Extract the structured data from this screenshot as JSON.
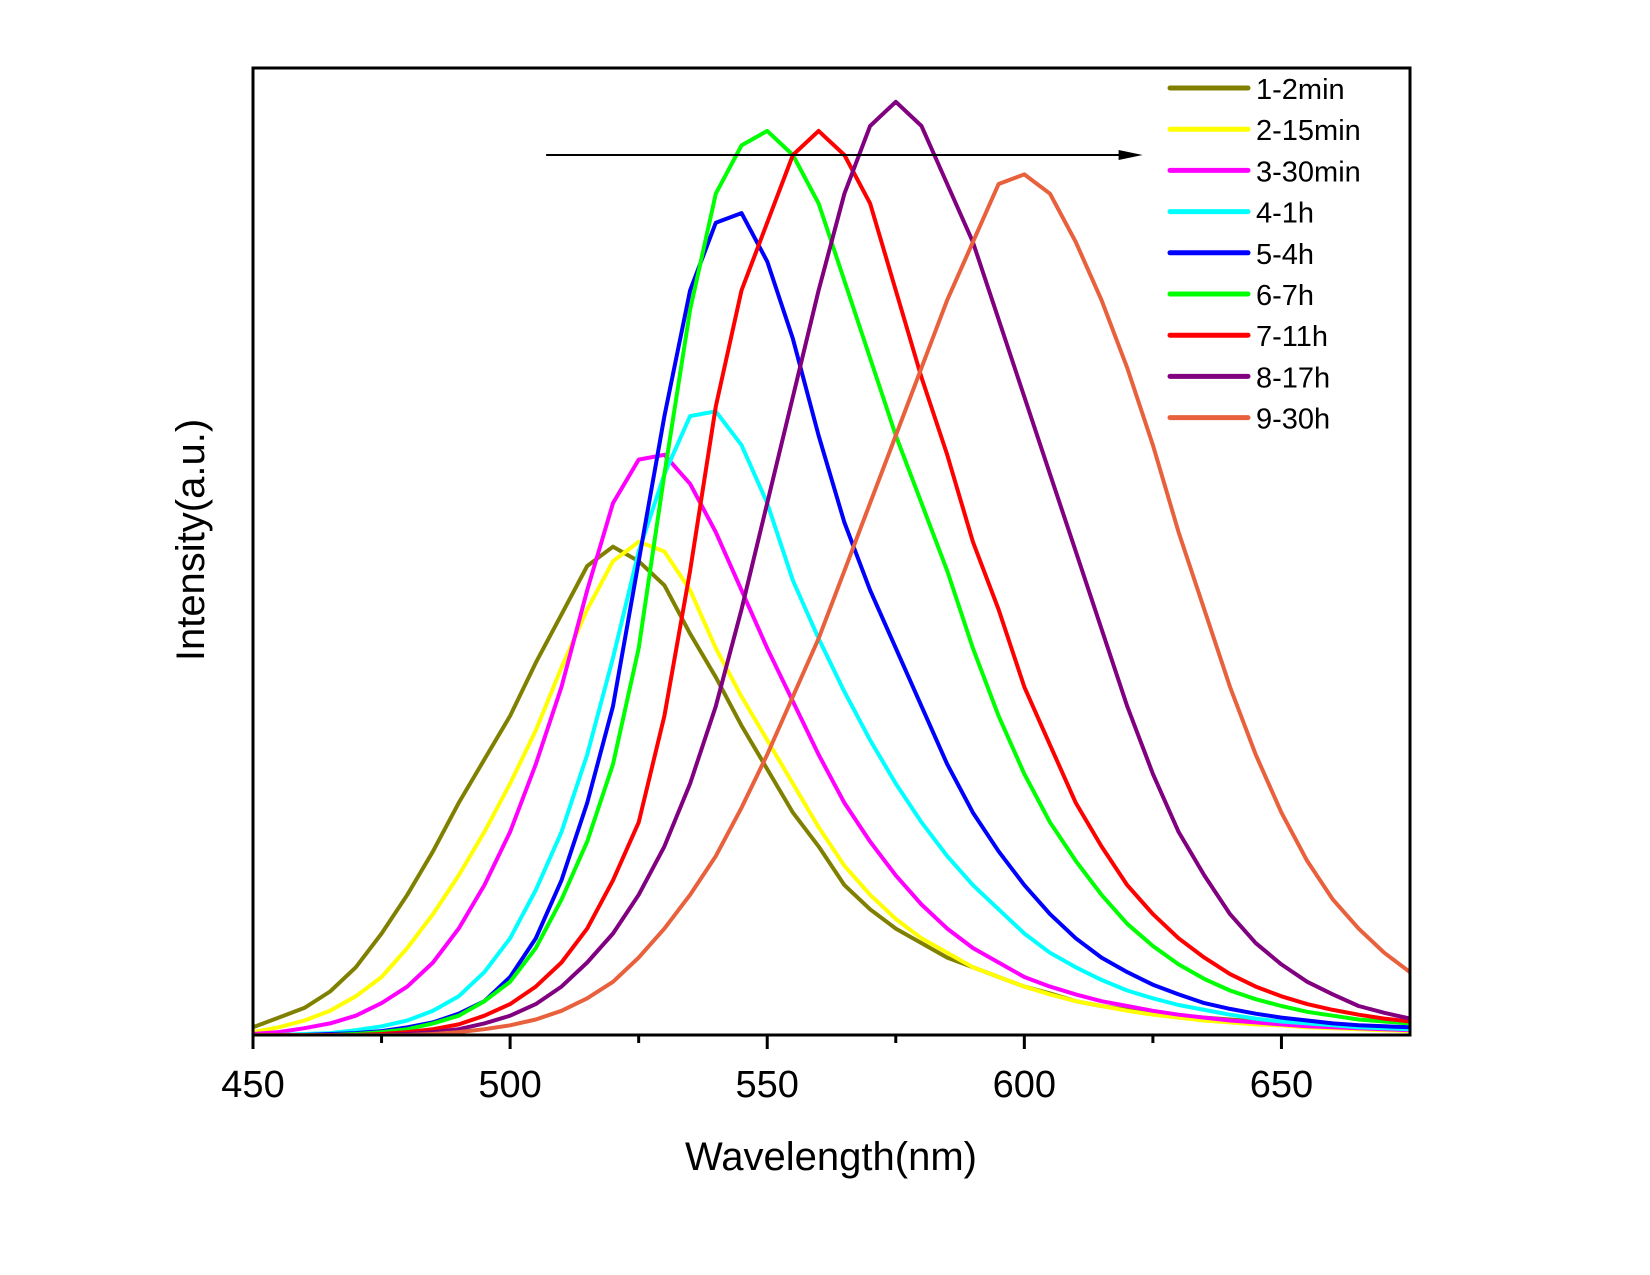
{
  "chart_data": {
    "type": "line",
    "title": "",
    "xlabel": "Wavelength(nm)",
    "ylabel": "Intensity(a.u.)",
    "xlim": [
      450,
      675
    ],
    "ylim": [
      0,
      100
    ],
    "x_ticks": [
      450,
      500,
      550,
      600,
      650
    ],
    "x_minor_ticks": [
      475,
      525,
      575,
      625
    ],
    "y_ticks_shown": false,
    "grid": false,
    "legend_position": "top-right",
    "annotation": {
      "type": "arrow",
      "from_x": 507,
      "to_x": 623,
      "y": 91,
      "meaning": "red-shift over time"
    },
    "x": [
      450,
      455,
      460,
      465,
      470,
      475,
      480,
      485,
      490,
      495,
      500,
      505,
      510,
      515,
      520,
      525,
      530,
      535,
      540,
      545,
      550,
      555,
      560,
      565,
      570,
      575,
      580,
      585,
      590,
      595,
      600,
      605,
      610,
      615,
      620,
      625,
      630,
      635,
      640,
      645,
      650,
      655,
      660,
      665,
      670,
      675
    ],
    "series": [
      {
        "name": "1-2min",
        "color": "#808000",
        "values": [
          0.8,
          1.8,
          2.8,
          4.5,
          7,
          10.5,
          14.5,
          19,
          24,
          28.5,
          33,
          38.5,
          43.5,
          48.5,
          50.5,
          49,
          46.5,
          41.5,
          37,
          32,
          27.5,
          23,
          19.5,
          15.5,
          13,
          11,
          9.5,
          8,
          7,
          6,
          5,
          4.3,
          3.5,
          3,
          2.6,
          2.3,
          2,
          1.8,
          1.6,
          1.4,
          1.2,
          1,
          0.8,
          0.7,
          0.6,
          0.5
        ]
      },
      {
        "name": "2-15min",
        "color": "#ffff00",
        "values": [
          0.3,
          0.8,
          1.5,
          2.5,
          4,
          6,
          9,
          12.5,
          16.5,
          21,
          26,
          31.5,
          38,
          44,
          49,
          51,
          50,
          46,
          40,
          35,
          30.5,
          26,
          21.5,
          17.5,
          14.5,
          12,
          10,
          8.5,
          7,
          6,
          5,
          4.2,
          3.5,
          3,
          2.5,
          2.1,
          1.8,
          1.5,
          1.3,
          1.1,
          1,
          0.8,
          0.7,
          0.6,
          0.5,
          0.4
        ]
      },
      {
        "name": "3-30min",
        "color": "#ff00ff",
        "values": [
          0.1,
          0.3,
          0.7,
          1.2,
          2,
          3.3,
          5,
          7.5,
          11,
          15.5,
          21,
          28,
          36,
          46,
          55,
          59.5,
          60,
          57,
          52,
          46,
          40,
          34.5,
          29,
          24,
          20,
          16.5,
          13.5,
          11,
          9,
          7.5,
          6,
          5,
          4.2,
          3.5,
          3,
          2.5,
          2.1,
          1.8,
          1.5,
          1.3,
          1.1,
          0.9,
          0.8,
          0.7,
          0.6,
          0.5
        ]
      },
      {
        "name": "4-1h",
        "color": "#00ffff",
        "values": [
          0,
          0,
          0.1,
          0.2,
          0.5,
          0.9,
          1.5,
          2.5,
          4,
          6.5,
          10,
          15,
          21,
          29,
          39,
          50,
          58,
          64,
          64.5,
          61,
          55,
          47,
          41,
          35.5,
          30.5,
          26,
          22,
          18.5,
          15.5,
          13,
          10.5,
          8.5,
          7,
          5.7,
          4.6,
          3.8,
          3.1,
          2.6,
          2.1,
          1.7,
          1.4,
          1.2,
          1,
          0.8,
          0.7,
          0.6
        ]
      },
      {
        "name": "5-4h",
        "color": "#0000ff",
        "values": [
          0,
          0,
          0,
          0.1,
          0.2,
          0.4,
          0.8,
          1.3,
          2.2,
          3.5,
          6,
          10,
          16,
          24,
          34,
          49,
          64,
          77,
          84,
          85,
          80,
          72,
          62,
          53,
          46,
          40,
          34,
          28,
          23,
          19,
          15.5,
          12.5,
          10,
          8,
          6.5,
          5.2,
          4.2,
          3.3,
          2.7,
          2.2,
          1.8,
          1.5,
          1.2,
          1,
          0.9,
          0.8
        ]
      },
      {
        "name": "6-7h",
        "color": "#00ff00",
        "values": [
          0,
          0,
          0,
          0,
          0.1,
          0.3,
          0.6,
          1.2,
          2,
          3.5,
          5.5,
          9,
          14,
          20,
          28,
          40,
          58,
          75,
          87,
          92,
          93.5,
          91,
          86,
          78,
          70,
          62,
          55,
          48,
          40,
          33,
          27,
          22,
          18,
          14.5,
          11.5,
          9.2,
          7.3,
          5.8,
          4.6,
          3.7,
          3,
          2.4,
          2,
          1.6,
          1.4,
          1.2
        ]
      },
      {
        "name": "7-11h",
        "color": "#ff0000",
        "values": [
          0,
          0,
          0,
          0,
          0,
          0.1,
          0.3,
          0.6,
          1.1,
          2,
          3.2,
          5,
          7.5,
          11,
          16,
          22,
          33,
          48,
          65,
          77,
          84,
          91,
          93.5,
          91,
          86,
          77,
          68,
          60,
          51,
          44,
          36,
          30,
          24,
          19.5,
          15.5,
          12.5,
          10,
          8,
          6.3,
          5,
          4,
          3.2,
          2.6,
          2.1,
          1.7,
          1.4
        ]
      },
      {
        "name": "8-17h",
        "color": "#800080",
        "values": [
          0,
          0,
          0,
          0,
          0,
          0,
          0.1,
          0.3,
          0.6,
          1.2,
          2,
          3.2,
          5,
          7.5,
          10.5,
          14.5,
          19.5,
          26,
          34,
          44,
          55,
          66,
          77,
          87,
          94,
          96.5,
          94,
          88,
          82,
          74,
          66,
          58,
          50,
          42,
          34,
          27,
          21,
          16.5,
          12.5,
          9.5,
          7.3,
          5.5,
          4.2,
          3,
          2.3,
          1.7
        ]
      },
      {
        "name": "9-30h",
        "color": "#e8603c",
        "values": [
          0,
          0,
          0,
          0,
          0,
          0,
          0,
          0.1,
          0.3,
          0.6,
          1,
          1.6,
          2.5,
          3.8,
          5.5,
          8,
          11,
          14.5,
          18.5,
          23.5,
          29,
          35,
          41,
          48,
          55,
          62,
          69,
          76,
          82,
          88,
          89,
          87,
          82,
          76,
          69,
          61,
          52,
          44,
          36,
          29,
          23,
          18,
          14,
          11,
          8.5,
          6.5
        ]
      }
    ]
  }
}
